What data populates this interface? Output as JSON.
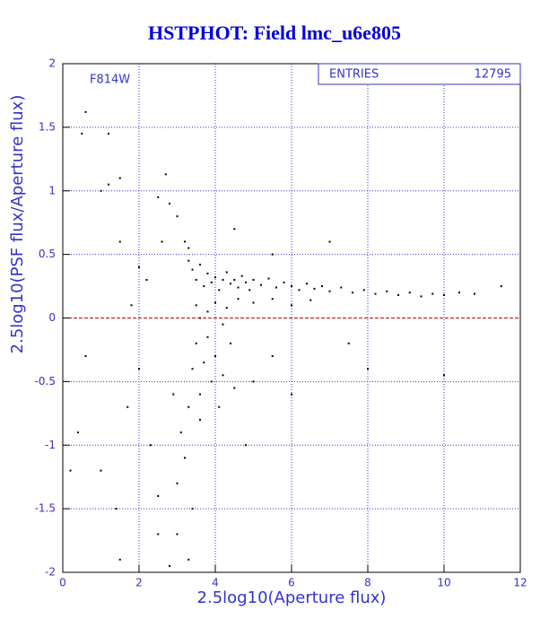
{
  "chart_data": {
    "type": "scatter",
    "title": "HSTPHOT: Field lmc_u6e805",
    "x_label": "2.5log10(Aperture flux)",
    "y_label": "2.5log10(PSF flux/Aperture flux)",
    "annotation": "F814W",
    "stats": {
      "label": "ENTRIES",
      "value": 12795
    },
    "color": "#000000",
    "grid": true,
    "grid_color": "#3333cc",
    "reference_line": {
      "y": 0,
      "color": "#cc0000"
    },
    "xlim": [
      0,
      12
    ],
    "xticks": [
      0,
      2,
      4,
      6,
      8,
      10,
      12
    ],
    "ylim": [
      -2,
      2
    ],
    "yticks": [
      -2,
      -1.5,
      -1,
      -0.5,
      0,
      0.5,
      1,
      1.5,
      2
    ],
    "x": [
      3.3,
      3.4,
      3.5,
      3.6,
      3.7,
      3.8,
      3.9,
      4.0,
      4.1,
      4.2,
      4.3,
      4.4,
      4.5,
      4.6,
      4.7,
      4.8,
      4.9,
      5.0,
      5.2,
      5.4,
      5.6,
      5.8,
      6.0,
      6.2,
      6.4,
      6.6,
      6.8,
      7.0,
      7.3,
      7.6,
      7.9,
      8.2,
      8.5,
      8.8,
      9.1,
      9.4,
      9.7,
      10.0,
      10.4,
      10.8,
      11.5,
      3.5,
      3.8,
      4.0,
      4.3,
      4.6,
      5.0,
      5.5,
      6.0,
      6.5,
      3.6,
      4.2,
      3.5,
      3.7,
      3.9,
      3.6,
      4.0,
      4.2,
      3.4,
      3.8,
      4.4,
      3.3,
      3.1,
      3.2,
      3.0,
      3.4,
      3.6,
      4.1,
      4.5,
      2.9,
      3.0,
      3.3,
      3.2,
      3.0,
      2.8,
      2.5,
      3.3,
      2.6,
      2.2,
      2.0,
      1.5,
      1.2,
      1.0,
      1.5,
      0.6,
      0.5,
      1.2,
      2.7,
      4.5,
      5.5,
      7.0,
      1.8,
      2.0,
      1.7,
      1.0,
      0.6,
      2.3,
      2.5,
      2.5,
      1.4,
      0.4,
      0.2,
      5.0,
      5.5,
      6.0,
      8.0,
      7.5,
      10.0,
      2.8,
      1.5,
      4.8
    ],
    "values": [
      0.45,
      0.38,
      0.3,
      0.42,
      0.25,
      0.35,
      0.28,
      0.32,
      0.22,
      0.3,
      0.36,
      0.27,
      0.3,
      0.24,
      0.33,
      0.28,
      0.22,
      0.3,
      0.26,
      0.31,
      0.24,
      0.28,
      0.25,
      0.22,
      0.27,
      0.23,
      0.25,
      0.21,
      0.24,
      0.2,
      0.22,
      0.19,
      0.21,
      0.18,
      0.2,
      0.17,
      0.19,
      0.18,
      0.2,
      0.19,
      0.25,
      0.1,
      0.05,
      0.12,
      0.08,
      0.15,
      0.12,
      0.15,
      0.1,
      0.14,
      0.0,
      -0.05,
      -0.2,
      -0.35,
      -0.5,
      -0.6,
      -0.3,
      -0.45,
      -0.4,
      -0.15,
      -0.2,
      -0.7,
      -0.9,
      -1.1,
      -1.3,
      -1.5,
      -0.8,
      -0.7,
      -0.55,
      -0.6,
      -1.7,
      -1.9,
      0.6,
      0.8,
      0.9,
      0.95,
      0.55,
      0.6,
      0.3,
      0.4,
      0.6,
      1.05,
      1.0,
      1.1,
      1.62,
      1.45,
      1.45,
      1.13,
      0.7,
      0.5,
      0.6,
      0.1,
      -0.4,
      -0.7,
      -1.2,
      -0.3,
      -1.0,
      -1.4,
      -1.7,
      -1.5,
      -0.9,
      -1.2,
      -0.5,
      -0.3,
      -0.6,
      -0.4,
      -0.2,
      -0.45,
      -1.95,
      -1.9,
      -1.0
    ]
  }
}
